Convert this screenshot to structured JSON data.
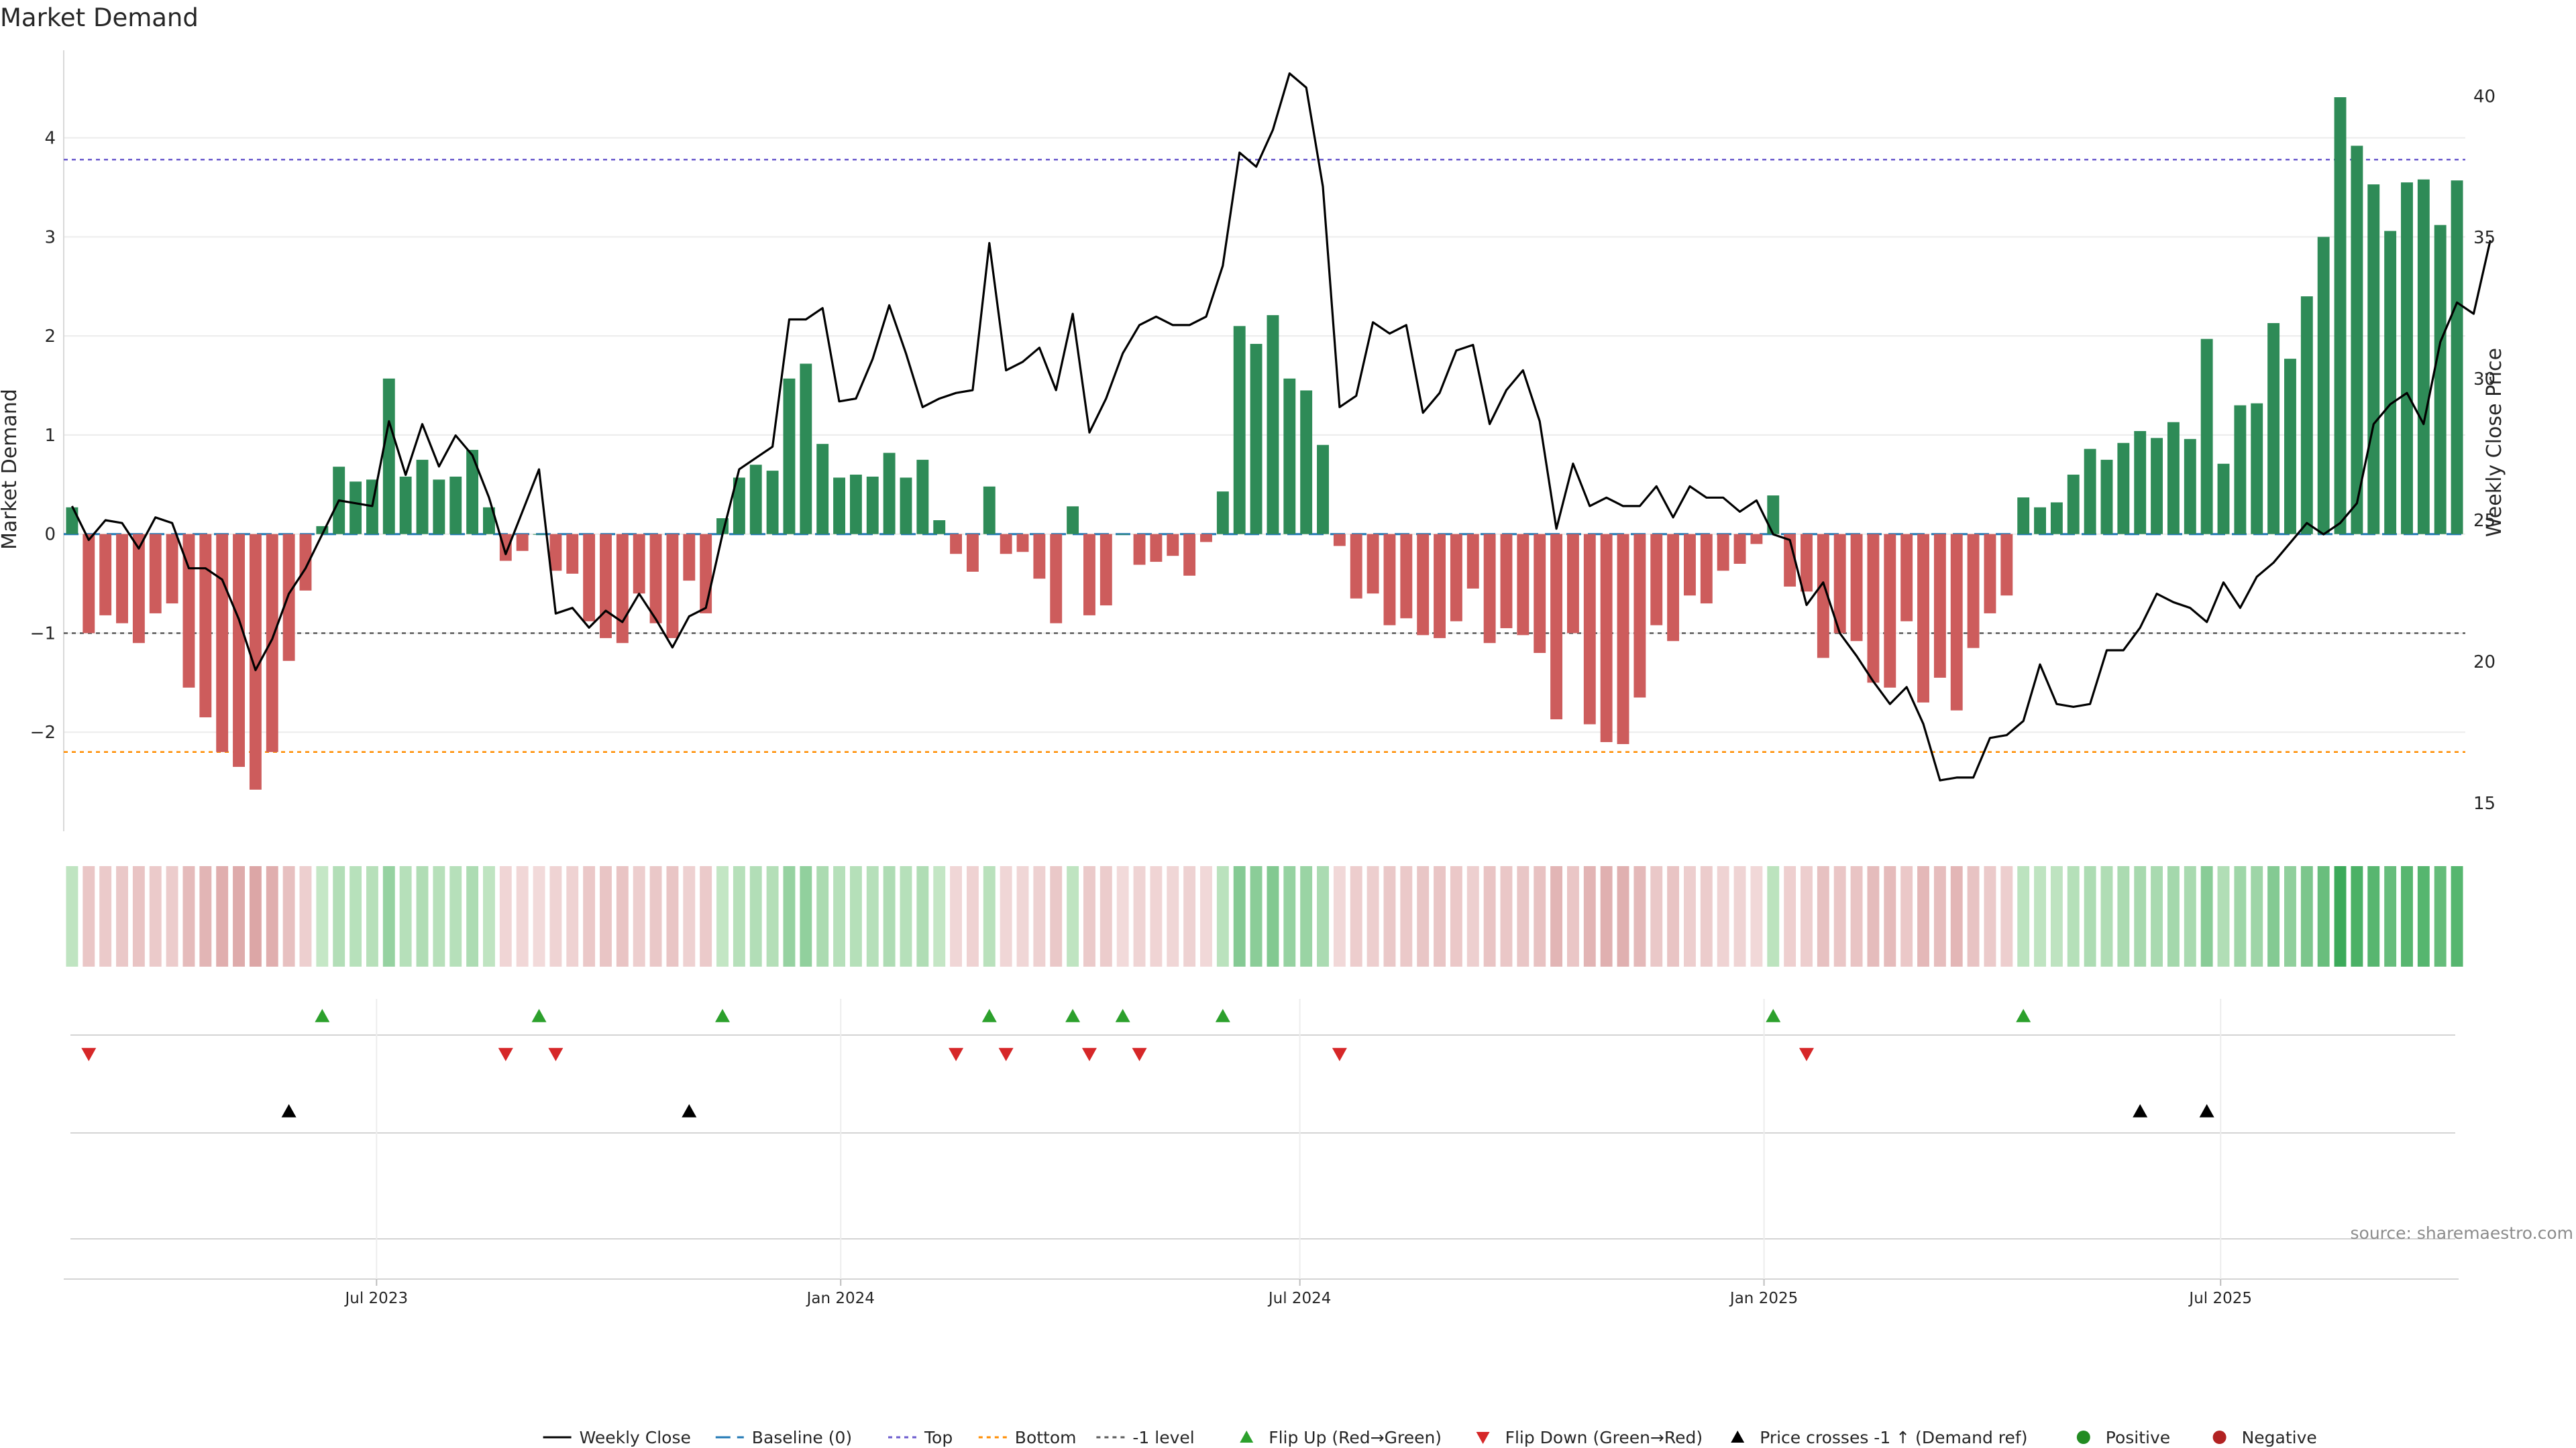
{
  "chart_data": {
    "type": "bar",
    "title": "Market Demand",
    "ylabel": "Market Demand",
    "y2label": "Weekly Close Price",
    "ylim": [
      -3.0,
      4.85
    ],
    "y2lim": [
      14.0,
      41.5
    ],
    "yticks": [
      -2,
      -1,
      0,
      1,
      2,
      3,
      4
    ],
    "ytick_labels": [
      "−2",
      "−1",
      "0",
      "1",
      "2",
      "3",
      "4"
    ],
    "y2ticks": [
      15,
      20,
      25,
      30,
      35,
      40
    ],
    "x_start": "2023-02-27",
    "x_end": "2025-10-06",
    "date_ticks": [
      {
        "date": "2023-07-01",
        "label": "Jul 2023"
      },
      {
        "date": "2024-01-01",
        "label": "Jan 2024"
      },
      {
        "date": "2024-07-01",
        "label": "Jul 2024"
      },
      {
        "date": "2025-01-01",
        "label": "Jan 2025"
      },
      {
        "date": "2025-07-01",
        "label": "Jul 2025"
      }
    ],
    "levels": {
      "top": 3.78,
      "bottom": -2.2,
      "minus_one": -1.0,
      "baseline": 0
    },
    "demand": [
      0.27,
      -1.0,
      -0.82,
      -0.9,
      -1.1,
      -0.8,
      -0.7,
      -1.55,
      -1.85,
      -2.2,
      -2.35,
      -2.58,
      -2.2,
      -1.28,
      -0.57,
      0.08,
      0.68,
      0.53,
      0.55,
      1.57,
      0.58,
      0.75,
      0.55,
      0.58,
      0.85,
      0.27,
      -0.27,
      -0.17,
      0.0,
      -0.37,
      -0.4,
      -0.88,
      -1.05,
      -1.1,
      -0.6,
      -0.9,
      -1.05,
      -0.47,
      -0.8,
      0.16,
      0.57,
      0.7,
      0.64,
      1.57,
      1.72,
      0.91,
      0.57,
      0.6,
      0.58,
      0.82,
      0.57,
      0.75,
      0.14,
      -0.2,
      -0.38,
      0.48,
      -0.2,
      -0.18,
      -0.45,
      -0.9,
      0.28,
      -0.82,
      -0.72,
      0.0,
      -0.31,
      -0.28,
      -0.22,
      -0.42,
      -0.08,
      0.43,
      2.1,
      1.92,
      2.21,
      1.57,
      1.45,
      0.9,
      -0.12,
      -0.65,
      -0.6,
      -0.92,
      -0.85,
      -1.02,
      -1.05,
      -0.88,
      -0.55,
      -1.1,
      -0.95,
      -1.02,
      -1.2,
      -1.87,
      -1.0,
      -1.92,
      -2.1,
      -2.12,
      -1.65,
      -0.92,
      -1.08,
      -0.62,
      -0.7,
      -0.37,
      -0.3,
      -0.1,
      0.39,
      -0.53,
      -0.58,
      -1.25,
      -1.0,
      -1.08,
      -1.5,
      -1.55,
      -0.88,
      -1.7,
      -1.45,
      -1.78,
      -1.15,
      -0.8,
      -0.62,
      0.37,
      0.27,
      0.32,
      0.6,
      0.86,
      0.75,
      0.92,
      1.04,
      0.97,
      1.13,
      0.96,
      1.97,
      0.71,
      1.3,
      1.32,
      2.13,
      1.77,
      2.4,
      3.0,
      4.41,
      3.92,
      3.53,
      3.06,
      3.55,
      3.58,
      3.12,
      3.57
    ],
    "close_price": [
      25.5,
      24.3,
      25.0,
      24.9,
      24.0,
      25.1,
      24.9,
      23.3,
      23.3,
      22.9,
      21.5,
      19.7,
      20.8,
      22.4,
      23.3,
      24.5,
      25.7,
      25.6,
      25.5,
      28.5,
      26.6,
      28.4,
      26.9,
      28.0,
      27.3,
      25.8,
      23.8,
      25.3,
      26.8,
      21.7,
      21.9,
      21.2,
      21.8,
      21.4,
      22.4,
      21.5,
      20.5,
      21.6,
      21.9,
      24.5,
      26.8,
      27.2,
      27.6,
      32.1,
      32.1,
      32.5,
      29.2,
      29.3,
      30.7,
      32.6,
      30.9,
      29.0,
      29.3,
      29.5,
      29.6,
      34.8,
      30.3,
      30.6,
      31.1,
      29.6,
      32.3,
      28.1,
      29.3,
      30.9,
      31.9,
      32.2,
      31.9,
      31.9,
      32.2,
      34.0,
      38.0,
      37.5,
      38.8,
      40.8,
      40.3,
      36.8,
      29.0,
      29.4,
      32.0,
      31.6,
      31.9,
      28.8,
      29.5,
      31.0,
      31.2,
      28.4,
      29.6,
      30.3,
      28.5,
      24.7,
      27.0,
      25.5,
      25.8,
      25.5,
      25.5,
      26.2,
      25.1,
      26.2,
      25.8,
      25.8,
      25.3,
      25.7,
      24.5,
      24.3,
      22.0,
      22.8,
      21.0,
      20.2,
      19.3,
      18.5,
      19.1,
      17.8,
      15.8,
      15.9,
      15.9,
      17.3,
      17.4,
      17.9,
      19.9,
      18.5,
      18.4,
      18.5,
      20.4,
      20.4,
      21.2,
      22.4,
      22.1,
      21.9,
      21.4,
      22.8,
      21.9,
      23.0,
      23.5,
      24.2,
      24.9,
      24.5,
      24.9,
      25.6,
      28.4,
      29.1,
      29.5,
      28.4,
      31.3,
      32.7,
      32.3,
      34.9
    ],
    "flip_up_index": [
      15,
      28,
      39,
      55,
      60,
      63,
      69,
      102,
      117
    ],
    "flip_down_index": [
      1,
      26,
      29,
      53,
      56,
      61,
      64,
      76,
      104
    ],
    "price_cross_index": [
      13,
      37,
      124,
      128
    ],
    "colors": {
      "positive_bar": "#2e8b57",
      "negative_bar": "#cd5c5c",
      "price_line": "#000000",
      "top_line": "#6a5acd",
      "bottom_line": "#ff8c00",
      "minus_one_line": "#5a5a5a",
      "baseline_line": "#1f77b4",
      "flip_up": "#2ca02c",
      "flip_down": "#d62728",
      "price_cross": "#000000",
      "positive_dot": "#228b22",
      "negative_dot": "#b22222"
    },
    "legend": [
      {
        "label": "Weekly Close",
        "kind": "line",
        "color": "#000000",
        "dash": ""
      },
      {
        "label": "Baseline (0)",
        "kind": "line",
        "color": "#1f77b4",
        "dash": "22,10"
      },
      {
        "label": "Top",
        "kind": "line",
        "color": "#6a5acd",
        "dash": "6,6"
      },
      {
        "label": "Bottom",
        "kind": "line",
        "color": "#ff8c00",
        "dash": "6,6"
      },
      {
        "label": "-1 level",
        "kind": "line",
        "color": "#5a5a5a",
        "dash": "6,6"
      },
      {
        "label": "Flip Up (Red→Green)",
        "kind": "tri-up",
        "color": "#2ca02c"
      },
      {
        "label": "Flip Down (Green→Red)",
        "kind": "tri-down",
        "color": "#d62728"
      },
      {
        "label": "Price crosses -1 ↑ (Demand ref)",
        "kind": "tri-up",
        "color": "#000000"
      },
      {
        "label": "Positive",
        "kind": "dot",
        "color": "#228b22"
      },
      {
        "label": "Negative",
        "kind": "dot",
        "color": "#b22222"
      }
    ],
    "source": "source: sharemaestro.com"
  }
}
